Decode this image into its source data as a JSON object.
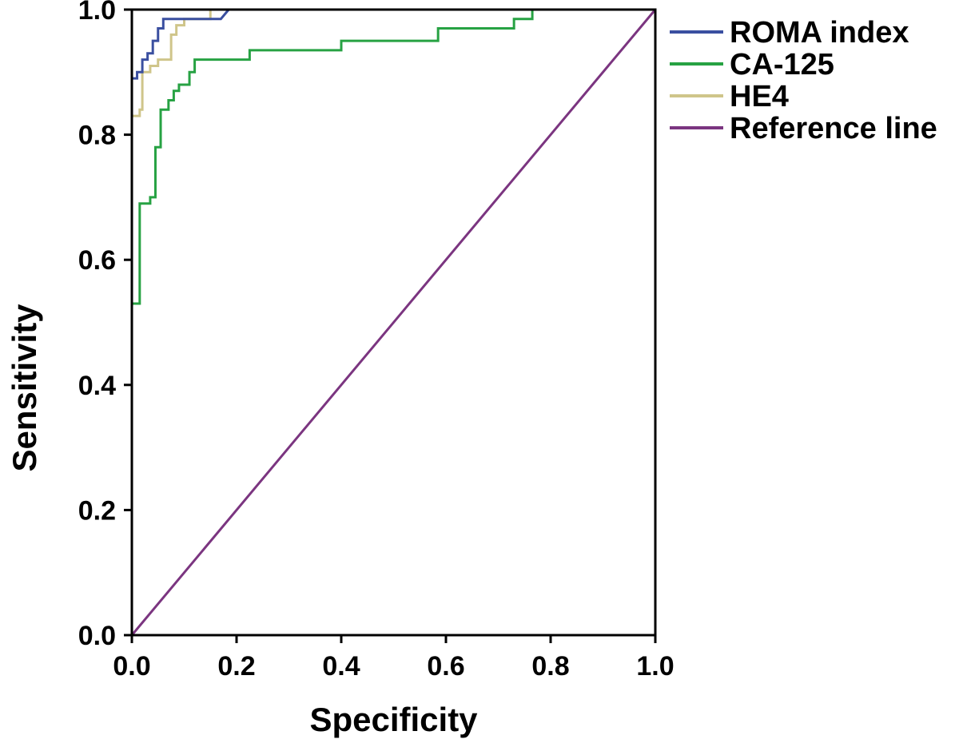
{
  "chart_data": {
    "type": "line",
    "title": "",
    "xlabel": "Specificity",
    "ylabel": "Sensitivity",
    "xlim": [
      0,
      1
    ],
    "ylim": [
      0,
      1
    ],
    "x_ticks": [
      0.0,
      0.2,
      0.4,
      0.6,
      0.8,
      1.0
    ],
    "x_tick_labels": [
      "0.0",
      "0.2",
      "0.4",
      "0.6",
      "0.8",
      "1.0"
    ],
    "y_ticks": [
      0.0,
      0.2,
      0.4,
      0.6,
      0.8,
      1.0
    ],
    "y_tick_labels": [
      "0.0",
      "0.2",
      "0.4",
      "0.6",
      "0.8",
      "1.0"
    ],
    "grid": false,
    "legend_position": "top-right outside",
    "series": [
      {
        "name": "ROMA index",
        "color": "#3a4fa0",
        "points": [
          [
            0.0,
            0.0
          ],
          [
            0.0,
            0.89
          ],
          [
            0.01,
            0.89
          ],
          [
            0.01,
            0.9
          ],
          [
            0.02,
            0.9
          ],
          [
            0.02,
            0.92
          ],
          [
            0.03,
            0.92
          ],
          [
            0.03,
            0.93
          ],
          [
            0.04,
            0.93
          ],
          [
            0.04,
            0.95
          ],
          [
            0.05,
            0.95
          ],
          [
            0.05,
            0.97
          ],
          [
            0.06,
            0.97
          ],
          [
            0.06,
            0.985
          ],
          [
            0.17,
            0.985
          ],
          [
            0.185,
            1.0
          ],
          [
            1.0,
            1.0
          ]
        ]
      },
      {
        "name": "CA-125",
        "color": "#27a243",
        "points": [
          [
            0.0,
            0.0
          ],
          [
            0.0,
            0.53
          ],
          [
            0.015,
            0.53
          ],
          [
            0.015,
            0.69
          ],
          [
            0.035,
            0.69
          ],
          [
            0.035,
            0.7
          ],
          [
            0.045,
            0.7
          ],
          [
            0.045,
            0.78
          ],
          [
            0.055,
            0.78
          ],
          [
            0.055,
            0.84
          ],
          [
            0.07,
            0.84
          ],
          [
            0.07,
            0.855
          ],
          [
            0.08,
            0.855
          ],
          [
            0.08,
            0.87
          ],
          [
            0.09,
            0.87
          ],
          [
            0.09,
            0.88
          ],
          [
            0.11,
            0.88
          ],
          [
            0.11,
            0.9
          ],
          [
            0.12,
            0.9
          ],
          [
            0.12,
            0.92
          ],
          [
            0.225,
            0.92
          ],
          [
            0.225,
            0.935
          ],
          [
            0.4,
            0.935
          ],
          [
            0.4,
            0.95
          ],
          [
            0.585,
            0.95
          ],
          [
            0.585,
            0.97
          ],
          [
            0.73,
            0.97
          ],
          [
            0.73,
            0.985
          ],
          [
            0.765,
            0.985
          ],
          [
            0.765,
            1.0
          ],
          [
            1.0,
            1.0
          ]
        ]
      },
      {
        "name": "HE4",
        "color": "#cfc58a",
        "points": [
          [
            0.0,
            0.0
          ],
          [
            0.0,
            0.83
          ],
          [
            0.015,
            0.83
          ],
          [
            0.015,
            0.84
          ],
          [
            0.02,
            0.84
          ],
          [
            0.02,
            0.9
          ],
          [
            0.035,
            0.9
          ],
          [
            0.035,
            0.91
          ],
          [
            0.05,
            0.91
          ],
          [
            0.05,
            0.92
          ],
          [
            0.075,
            0.92
          ],
          [
            0.075,
            0.96
          ],
          [
            0.085,
            0.96
          ],
          [
            0.085,
            0.975
          ],
          [
            0.1,
            0.975
          ],
          [
            0.1,
            0.985
          ],
          [
            0.15,
            0.985
          ],
          [
            0.15,
            1.0
          ],
          [
            1.0,
            1.0
          ]
        ]
      },
      {
        "name": "Reference line",
        "color": "#7b3580",
        "points": [
          [
            0.0,
            0.0
          ],
          [
            1.0,
            1.0
          ]
        ]
      }
    ]
  }
}
